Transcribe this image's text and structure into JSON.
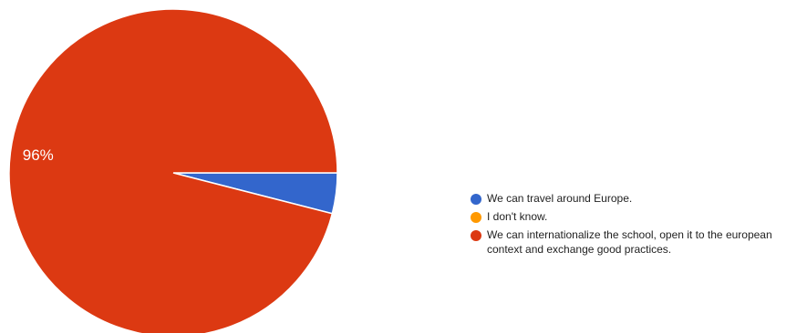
{
  "chart_data": {
    "type": "pie",
    "series": [
      {
        "name": "We can travel around Europe.",
        "value": 4,
        "color": "#3366CC",
        "label": ""
      },
      {
        "name": "I don't know.",
        "value": 0,
        "color": "#FF9900",
        "label": ""
      },
      {
        "name": "We can internationalize the school, open it to the european context and exchange good practices.",
        "value": 96,
        "color": "#DC3912",
        "label": "96%"
      }
    ],
    "legend_position": "right"
  }
}
